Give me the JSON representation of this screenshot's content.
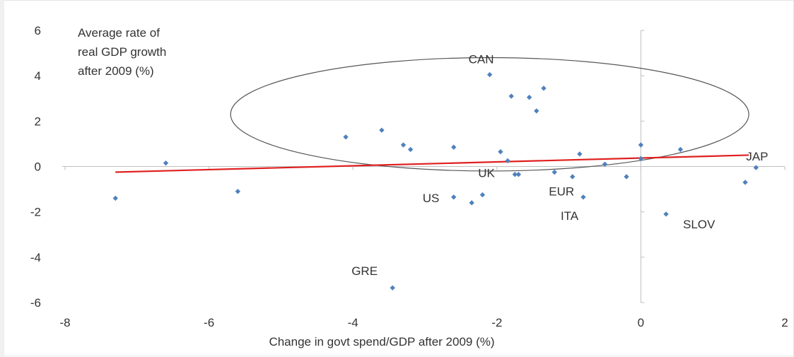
{
  "chart_data": {
    "type": "scatter",
    "title": "",
    "xlabel": "Change in govt spend/GDP after 2009 (%)",
    "ylabel_lines": [
      "Average rate of",
      "real GDP growth",
      "after 2009 (%)"
    ],
    "xlim": [
      -8,
      2
    ],
    "ylim": [
      -6,
      6
    ],
    "xticks": [
      -8,
      -6,
      -4,
      -2,
      0,
      2
    ],
    "yticks": [
      -6,
      -4,
      -2,
      0,
      2,
      4,
      6
    ],
    "grid": false,
    "legend": "none",
    "point_color": "#4f81bd",
    "trendline": {
      "color": "#e02020",
      "from": [
        -7.3,
        -0.25
      ],
      "to": [
        1.5,
        0.5
      ]
    },
    "highlight_ellipse": {
      "center": [
        -2.1,
        2.3
      ],
      "rx": 3.6,
      "ry": 2.5,
      "color": "#555555"
    },
    "points": [
      {
        "x": -7.3,
        "y": -1.4
      },
      {
        "x": -6.6,
        "y": 0.15
      },
      {
        "x": -5.6,
        "y": -1.1
      },
      {
        "x": -4.1,
        "y": 1.3
      },
      {
        "x": -3.6,
        "y": 1.6
      },
      {
        "x": -3.3,
        "y": 0.95
      },
      {
        "x": -3.2,
        "y": 0.75
      },
      {
        "x": -3.45,
        "y": -5.35,
        "label": "GRE"
      },
      {
        "x": -2.6,
        "y": 0.85
      },
      {
        "x": -2.6,
        "y": -1.35,
        "label": "US"
      },
      {
        "x": -2.35,
        "y": -1.6
      },
      {
        "x": -2.2,
        "y": -1.25
      },
      {
        "x": -2.1,
        "y": 4.05,
        "label": "CAN"
      },
      {
        "x": -1.95,
        "y": 0.65
      },
      {
        "x": -1.85,
        "y": 0.25
      },
      {
        "x": -1.8,
        "y": 3.1
      },
      {
        "x": -1.75,
        "y": -0.35,
        "label": "UK"
      },
      {
        "x": -1.7,
        "y": -0.35
      },
      {
        "x": -1.55,
        "y": 3.05
      },
      {
        "x": -1.45,
        "y": 2.45
      },
      {
        "x": -1.35,
        "y": 3.45
      },
      {
        "x": -1.2,
        "y": -0.25,
        "label": "EUR"
      },
      {
        "x": -0.95,
        "y": -0.45
      },
      {
        "x": -0.85,
        "y": 0.55
      },
      {
        "x": -0.8,
        "y": -1.35,
        "label": "ITA"
      },
      {
        "x": -0.5,
        "y": 0.1
      },
      {
        "x": -0.2,
        "y": -0.45
      },
      {
        "x": 0.0,
        "y": 0.95
      },
      {
        "x": 0.0,
        "y": 0.35
      },
      {
        "x": 0.35,
        "y": -2.1,
        "label": "SLOV"
      },
      {
        "x": 0.55,
        "y": 0.75
      },
      {
        "x": 1.45,
        "y": -0.7
      },
      {
        "x": 1.6,
        "y": -0.05,
        "label": "JAP"
      }
    ]
  }
}
